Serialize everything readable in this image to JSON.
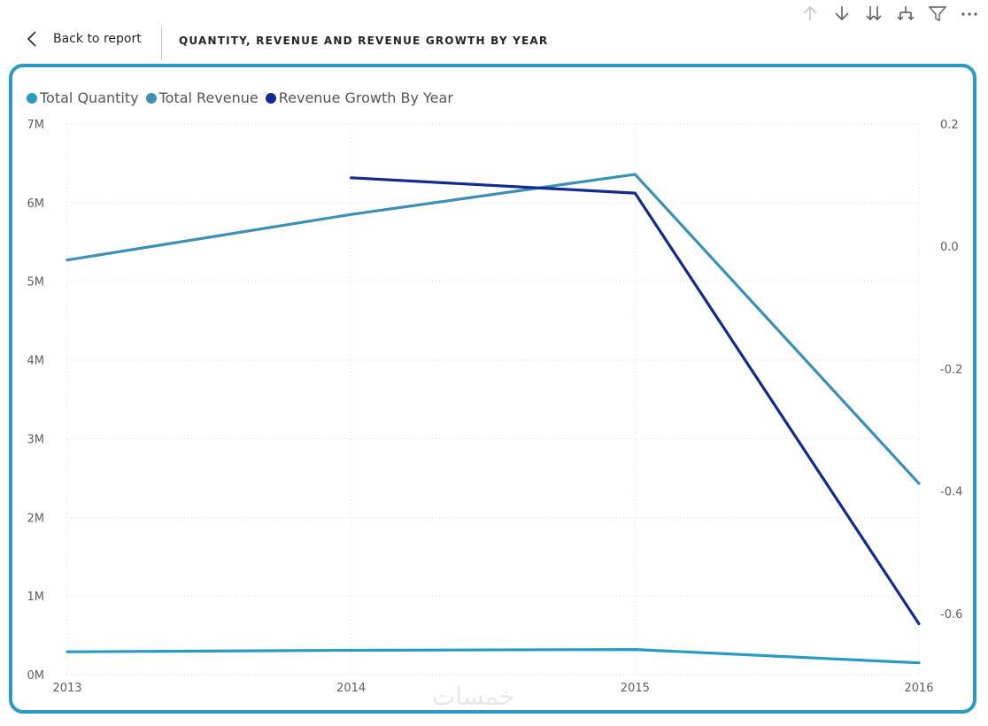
{
  "header": {
    "back_label": "Back to report",
    "title": "QUANTITY, REVENUE AND REVENUE GROWTH BY YEAR"
  },
  "toolbar": {
    "icons": [
      "arrow-up-icon",
      "arrow-down-icon",
      "double-arrow-down-icon",
      "expand-hierarchy-icon",
      "filter-icon",
      "more-options-icon"
    ]
  },
  "watermark": "خمسات",
  "colors": {
    "total_quantity": "#2a9ac3",
    "total_revenue": "#3a91b5",
    "revenue_growth": "#142a8e",
    "card_border": "#2a9ac3"
  },
  "chart_data": {
    "type": "line",
    "title": "",
    "categories": [
      "2013",
      "2014",
      "2015",
      "2016"
    ],
    "y_left": {
      "ticks": [
        "0M",
        "1M",
        "2M",
        "3M",
        "4M",
        "5M",
        "6M",
        "7M"
      ],
      "ylim": [
        0,
        7000000
      ]
    },
    "y_right": {
      "ticks": [
        "-0.6",
        "-0.4",
        "-0.2",
        "0.0",
        "0.2"
      ],
      "ylim": [
        -0.7,
        0.2
      ]
    },
    "grid": true,
    "legend_position": "top-left",
    "series": [
      {
        "name": "Total Quantity",
        "axis": "left",
        "color": "#2a9ac3",
        "values": [
          290000,
          310000,
          320000,
          150000
        ]
      },
      {
        "name": "Total Revenue",
        "axis": "left",
        "color": "#3a91b5",
        "values": [
          5270000,
          5850000,
          6360000,
          2430000
        ]
      },
      {
        "name": "Revenue Growth By Year",
        "axis": "right",
        "color": "#142a8e",
        "values": [
          null,
          0.112,
          0.087,
          -0.617
        ]
      }
    ]
  }
}
